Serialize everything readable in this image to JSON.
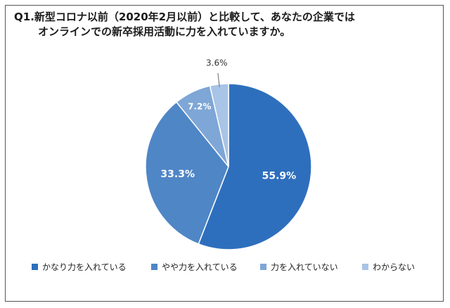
{
  "title": {
    "line1": "Q1.新型コロナ以前（2020年2月以前）と比較して、あなたの企業では",
    "line2": "オンラインでの新卒採用活動に力を入れていますか。"
  },
  "chart_data": {
    "type": "pie",
    "title": "Q1.新型コロナ以前（2020年2月以前）と比較して、あなたの企業では オンラインでの新卒採用活動に力を入れていますか。",
    "categories": [
      "かなり力を入れている",
      "やや力を入れている",
      "力を入れていない",
      "わからない"
    ],
    "values": [
      55.9,
      33.3,
      7.2,
      3.6
    ],
    "labels": [
      "55.9%",
      "33.3%",
      "7.2%",
      "3.6%"
    ],
    "colors": [
      "#2e6fbd",
      "#4f86c6",
      "#7ea6d6",
      "#a8c4e6"
    ],
    "legend_position": "bottom",
    "start": "top",
    "direction": "clockwise"
  }
}
